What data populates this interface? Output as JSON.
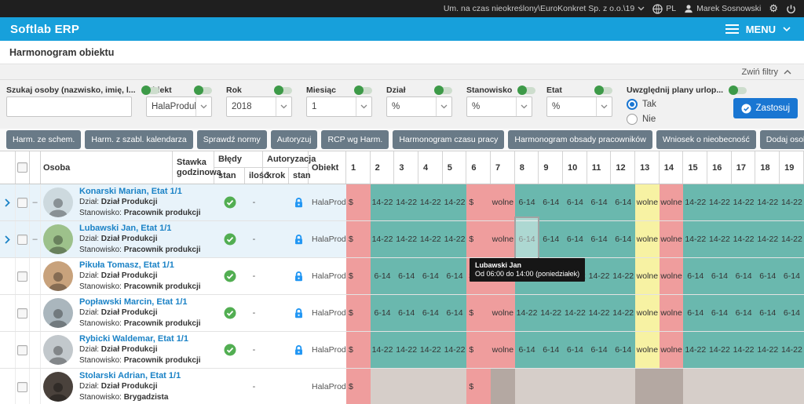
{
  "topbar": {
    "context": "Um. na czas nieokreślony\\EuroKonkret Sp. z o.o.\\19",
    "language": "PL",
    "user": "Marek Sosnowski",
    "gear_icon": "⚙"
  },
  "appbar": {
    "brand": "Softlab ERP",
    "menu_label": "MENU"
  },
  "page": {
    "title": "Harmonogram obiektu"
  },
  "filters": {
    "collapse_label": "Zwiń filtry",
    "apply_label": "Zastosuj",
    "search": {
      "label": "Szukaj osoby (nazwisko, imię, l...",
      "value": "",
      "placeholder": ""
    },
    "obiekt": {
      "label": "Obiekt",
      "value": "HalaProdukc..."
    },
    "rok": {
      "label": "Rok",
      "value": "2018"
    },
    "miesiac": {
      "label": "Miesiąc",
      "value": "1"
    },
    "dzial": {
      "label": "Dział",
      "value": "%"
    },
    "stanowisko": {
      "label": "Stanowisko",
      "value": "%"
    },
    "etat": {
      "label": "Etat",
      "value": "%"
    },
    "urlopy": {
      "label": "Uwzględnij plany urlop...",
      "option_yes": "Tak",
      "option_no": "Nie",
      "selected": "Tak"
    }
  },
  "toolbar": {
    "buttons": [
      "Harm. ze schem.",
      "Harm. z szabl. kalendarza",
      "Sprawdź normy",
      "Autoryzuj",
      "RCP wg Harm.",
      "Harmonogram czasu pracy",
      "Harmonogram obsady pracowników",
      "Wniosek o nieobecność",
      "Dodaj osobe"
    ]
  },
  "colors": {
    "t": "#6ab8ae",
    "r": "#ef9d9d",
    "y": "#f7f2a3",
    "g": "#d6cec9",
    "d": "#b4a8a2",
    "accent_blue": "#17a0db",
    "apply_blue": "#1976d2",
    "check_green": "#4caf50",
    "lock_blue": "#2196f3"
  },
  "table": {
    "headers": {
      "osoba": "Osoba",
      "stawka1": "Stawka",
      "stawka2": "godzinowa",
      "bledy": "Błędy",
      "stan": "stan",
      "ilosc": "ilość",
      "autoryzacja": "Autoryzacja",
      "krok": "krok",
      "stan2": "stan",
      "obiekt": "Obiekt"
    },
    "labels": {
      "dzial_label": "Dział:",
      "stanowisko_label": "Stanowisko:",
      "drag": "–"
    },
    "days": [
      1,
      2,
      3,
      4,
      5,
      6,
      7,
      8,
      9,
      10,
      11,
      12,
      13,
      14,
      15,
      16,
      17,
      18,
      19
    ],
    "selected": {
      "row": 1,
      "col": 7
    },
    "rows": [
      {
        "name": "Konarski Marian, Etat 1/1",
        "dzial": "Dział Produkcji",
        "stanowisko": "Pracownik produkcji",
        "ilosc": "-",
        "obiekt": "HalaProdu...",
        "check_ok": true,
        "locked": true,
        "expandable": true,
        "highlighted": true,
        "avatar_color": "#cdd9de",
        "schedule": [
          {
            "t": "$",
            "c": "r"
          },
          {
            "t": "14-22",
            "c": "t"
          },
          {
            "t": "14-22",
            "c": "t"
          },
          {
            "t": "14-22",
            "c": "t"
          },
          {
            "t": "14-22",
            "c": "t"
          },
          {
            "t": "$",
            "c": "r"
          },
          {
            "t": "wolne",
            "c": "r"
          },
          {
            "t": "6-14",
            "c": "t"
          },
          {
            "t": "6-14",
            "c": "t"
          },
          {
            "t": "6-14",
            "c": "t"
          },
          {
            "t": "6-14",
            "c": "t"
          },
          {
            "t": "6-14",
            "c": "t"
          },
          {
            "t": "wolne",
            "c": "y"
          },
          {
            "t": "wolne",
            "c": "r"
          },
          {
            "t": "14-22",
            "c": "t"
          },
          {
            "t": "14-22",
            "c": "t"
          },
          {
            "t": "14-22",
            "c": "t"
          },
          {
            "t": "14-22",
            "c": "t"
          },
          {
            "t": "14-22",
            "c": "t"
          }
        ]
      },
      {
        "name": "Lubawski Jan, Etat 1/1",
        "dzial": "Dział Produkcji",
        "stanowisko": "Pracownik produkcji",
        "ilosc": "-",
        "obiekt": "HalaProdu...",
        "check_ok": true,
        "locked": true,
        "expandable": true,
        "highlighted": true,
        "avatar_color": "#9dc18b",
        "schedule": [
          {
            "t": "$",
            "c": "r"
          },
          {
            "t": "14-22",
            "c": "t"
          },
          {
            "t": "14-22",
            "c": "t"
          },
          {
            "t": "14-22",
            "c": "t"
          },
          {
            "t": "14-22",
            "c": "t"
          },
          {
            "t": "$",
            "c": "r"
          },
          {
            "t": "wolne",
            "c": "r"
          },
          {
            "t": "6-14",
            "c": "t"
          },
          {
            "t": "6-14",
            "c": "t"
          },
          {
            "t": "6-14",
            "c": "t"
          },
          {
            "t": "6-14",
            "c": "t"
          },
          {
            "t": "6-14",
            "c": "t"
          },
          {
            "t": "wolne",
            "c": "y"
          },
          {
            "t": "wolne",
            "c": "r"
          },
          {
            "t": "14-22",
            "c": "t"
          },
          {
            "t": "14-22",
            "c": "t"
          },
          {
            "t": "14-22",
            "c": "t"
          },
          {
            "t": "14-22",
            "c": "t"
          },
          {
            "t": "14-22",
            "c": "t"
          }
        ]
      },
      {
        "name": "Pikuła Tomasz, Etat 1/1",
        "dzial": "Dział Produkcji",
        "stanowisko": "Pracownik produkcji",
        "ilosc": "-",
        "obiekt": "HalaProdu...",
        "check_ok": true,
        "locked": true,
        "expandable": false,
        "highlighted": false,
        "avatar_color": "#c8a27c",
        "schedule": [
          {
            "t": "$",
            "c": "r"
          },
          {
            "t": "6-14",
            "c": "t"
          },
          {
            "t": "6-14",
            "c": "t"
          },
          {
            "t": "6-14",
            "c": "t"
          },
          {
            "t": "6-14",
            "c": "t"
          },
          {
            "t": "$",
            "c": "r"
          },
          {
            "t": "wolne",
            "c": "r"
          },
          {
            "t": "14-22",
            "c": "t"
          },
          {
            "t": "14-22",
            "c": "t"
          },
          {
            "t": "14-22",
            "c": "t"
          },
          {
            "t": "14-22",
            "c": "t"
          },
          {
            "t": "14-22",
            "c": "t"
          },
          {
            "t": "wolne",
            "c": "y"
          },
          {
            "t": "wolne",
            "c": "r"
          },
          {
            "t": "6-14",
            "c": "t"
          },
          {
            "t": "6-14",
            "c": "t"
          },
          {
            "t": "6-14",
            "c": "t"
          },
          {
            "t": "6-14",
            "c": "t"
          },
          {
            "t": "6-14",
            "c": "t"
          }
        ]
      },
      {
        "name": "Popławski Marcin, Etat 1/1",
        "dzial": "Dział Produkcji",
        "stanowisko": "Pracownik produkcji",
        "ilosc": "-",
        "obiekt": "HalaProdu...",
        "check_ok": true,
        "locked": true,
        "expandable": false,
        "highlighted": false,
        "avatar_color": "#aab6bd",
        "schedule": [
          {
            "t": "$",
            "c": "r"
          },
          {
            "t": "6-14",
            "c": "t"
          },
          {
            "t": "6-14",
            "c": "t"
          },
          {
            "t": "6-14",
            "c": "t"
          },
          {
            "t": "6-14",
            "c": "t"
          },
          {
            "t": "$",
            "c": "r"
          },
          {
            "t": "wolne",
            "c": "r"
          },
          {
            "t": "14-22",
            "c": "t"
          },
          {
            "t": "14-22",
            "c": "t"
          },
          {
            "t": "14-22",
            "c": "t"
          },
          {
            "t": "14-22",
            "c": "t"
          },
          {
            "t": "14-22",
            "c": "t"
          },
          {
            "t": "wolne",
            "c": "y"
          },
          {
            "t": "wolne",
            "c": "r"
          },
          {
            "t": "6-14",
            "c": "t"
          },
          {
            "t": "6-14",
            "c": "t"
          },
          {
            "t": "6-14",
            "c": "t"
          },
          {
            "t": "6-14",
            "c": "t"
          },
          {
            "t": "6-14",
            "c": "t"
          }
        ]
      },
      {
        "name": "Rybicki Waldemar, Etat 1/1",
        "dzial": "Dział Produkcji",
        "stanowisko": "Pracownik produkcji",
        "ilosc": "-",
        "obiekt": "HalaProdu...",
        "check_ok": true,
        "locked": true,
        "expandable": false,
        "highlighted": false,
        "avatar_color": "#c2c8cc",
        "schedule": [
          {
            "t": "$",
            "c": "r"
          },
          {
            "t": "14-22",
            "c": "t"
          },
          {
            "t": "14-22",
            "c": "t"
          },
          {
            "t": "14-22",
            "c": "t"
          },
          {
            "t": "14-22",
            "c": "t"
          },
          {
            "t": "$",
            "c": "r"
          },
          {
            "t": "wolne",
            "c": "r"
          },
          {
            "t": "6-14",
            "c": "t"
          },
          {
            "t": "6-14",
            "c": "t"
          },
          {
            "t": "6-14",
            "c": "t"
          },
          {
            "t": "6-14",
            "c": "t"
          },
          {
            "t": "6-14",
            "c": "t"
          },
          {
            "t": "wolne",
            "c": "y"
          },
          {
            "t": "wolne",
            "c": "r"
          },
          {
            "t": "14-22",
            "c": "t"
          },
          {
            "t": "14-22",
            "c": "t"
          },
          {
            "t": "14-22",
            "c": "t"
          },
          {
            "t": "14-22",
            "c": "t"
          },
          {
            "t": "14-22",
            "c": "t"
          }
        ]
      },
      {
        "name": "Stolarski Adrian, Etat 1/1",
        "dzial": "Dział Produkcji",
        "stanowisko": "Brygadzista",
        "ilosc": "-",
        "obiekt": "HalaProdu...",
        "check_ok": false,
        "locked": false,
        "expandable": false,
        "highlighted": false,
        "avatar_color": "#4a423c",
        "schedule": [
          {
            "t": "$",
            "c": "r"
          },
          {
            "t": "",
            "c": "g"
          },
          {
            "t": "",
            "c": "g"
          },
          {
            "t": "",
            "c": "g"
          },
          {
            "t": "",
            "c": "g"
          },
          {
            "t": "$",
            "c": "r"
          },
          {
            "t": "",
            "c": "d"
          },
          {
            "t": "",
            "c": "g"
          },
          {
            "t": "",
            "c": "g"
          },
          {
            "t": "",
            "c": "g"
          },
          {
            "t": "",
            "c": "g"
          },
          {
            "t": "",
            "c": "g"
          },
          {
            "t": "",
            "c": "d"
          },
          {
            "t": "",
            "c": "d"
          },
          {
            "t": "",
            "c": "g"
          },
          {
            "t": "",
            "c": "g"
          },
          {
            "t": "",
            "c": "g"
          },
          {
            "t": "",
            "c": "g"
          },
          {
            "t": "",
            "c": "g"
          }
        ]
      }
    ]
  },
  "tooltip": {
    "line1": "Lubawski Jan",
    "line2": "Od 06:00 do 14:00 (poniedziałek)"
  }
}
